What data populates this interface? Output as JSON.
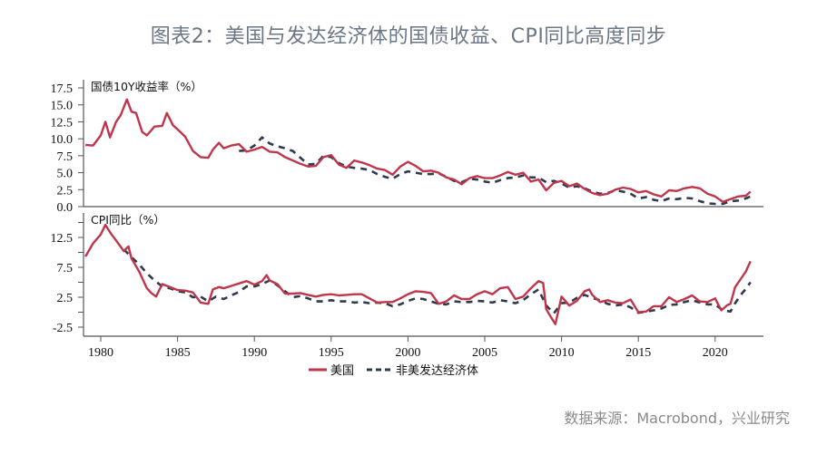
{
  "title": "图表2：美国与发达经济体的国债收益、CPI同比高度同步",
  "source": "数据来源：Macrobond，兴业研究",
  "colors": {
    "us": "#c0354a",
    "non_us": "#2e3a4f",
    "axis": "#555555",
    "title": "#6b7785"
  },
  "legend": {
    "us": "美国",
    "non_us": "非美发达经济体"
  },
  "chart_data": [
    {
      "type": "line",
      "title": "国债10Y收益率（%）",
      "ylabel": "国债10Y收益率（%）",
      "xlabel": "",
      "ylim": [
        0,
        17.5
      ],
      "yticks": [
        0.0,
        2.5,
        5.0,
        7.5,
        10.0,
        12.5,
        15.0,
        17.5
      ],
      "ytick_labels": [
        "0.0",
        "2.5",
        "5.0",
        "7.5",
        "10.0",
        "12.5",
        "15.0",
        "17.5"
      ],
      "xlim": [
        1978.9,
        2023.2
      ],
      "grid": false,
      "legend_position": "bottom",
      "series": [
        {
          "name": "美国",
          "style": "solid",
          "x": [
            1979.0,
            1979.5,
            1980.0,
            1980.3,
            1980.6,
            1981.0,
            1981.3,
            1981.7,
            1982.0,
            1982.3,
            1982.7,
            1983.0,
            1983.5,
            1984.0,
            1984.3,
            1984.7,
            1985.0,
            1985.5,
            1986.0,
            1986.5,
            1987.0,
            1987.3,
            1987.7,
            1988.0,
            1988.5,
            1989.0,
            1989.5,
            1990.0,
            1990.5,
            1991.0,
            1991.5,
            1992.0,
            1992.5,
            1993.0,
            1993.5,
            1994.0,
            1994.5,
            1995.0,
            1995.5,
            1996.0,
            1996.5,
            1997.0,
            1997.5,
            1998.0,
            1998.5,
            1999.0,
            1999.5,
            2000.0,
            2000.5,
            2001.0,
            2001.5,
            2002.0,
            2002.5,
            2003.0,
            2003.5,
            2004.0,
            2004.5,
            2005.0,
            2005.5,
            2006.0,
            2006.5,
            2007.0,
            2007.5,
            2008.0,
            2008.5,
            2009.0,
            2009.5,
            2010.0,
            2010.5,
            2011.0,
            2011.5,
            2012.0,
            2012.5,
            2013.0,
            2013.5,
            2014.0,
            2014.5,
            2015.0,
            2015.5,
            2016.0,
            2016.5,
            2017.0,
            2017.5,
            2018.0,
            2018.5,
            2019.0,
            2019.5,
            2020.0,
            2020.5,
            2021.0,
            2021.5,
            2022.0,
            2022.3
          ],
          "values": [
            9.1,
            9.0,
            10.5,
            12.5,
            10.2,
            12.5,
            13.5,
            15.8,
            14.0,
            13.8,
            11.0,
            10.5,
            11.8,
            11.9,
            13.8,
            12.0,
            11.4,
            10.3,
            8.2,
            7.3,
            7.2,
            8.4,
            9.4,
            8.6,
            9.0,
            9.2,
            8.1,
            8.4,
            8.8,
            8.1,
            8.0,
            7.3,
            6.8,
            6.3,
            5.9,
            6.0,
            7.3,
            7.6,
            6.2,
            5.7,
            6.8,
            6.5,
            6.1,
            5.6,
            5.4,
            4.7,
            5.9,
            6.6,
            6.0,
            5.2,
            5.3,
            5.0,
            4.3,
            4.0,
            3.3,
            4.2,
            4.5,
            4.2,
            4.2,
            4.6,
            5.1,
            4.7,
            5.0,
            3.7,
            4.0,
            2.4,
            3.5,
            3.8,
            3.0,
            3.4,
            2.6,
            2.0,
            1.7,
            1.9,
            2.5,
            2.8,
            2.6,
            2.1,
            2.3,
            1.8,
            1.5,
            2.4,
            2.3,
            2.7,
            2.9,
            2.7,
            1.9,
            1.5,
            0.7,
            1.1,
            1.5,
            1.6,
            2.2
          ]
        },
        {
          "name": "非美发达经济体",
          "style": "dashed",
          "x": [
            1989.0,
            1989.5,
            1990.0,
            1990.5,
            1991.0,
            1991.5,
            1992.0,
            1992.5,
            1993.0,
            1993.5,
            1994.0,
            1994.5,
            1995.0,
            1995.5,
            1996.0,
            1996.5,
            1997.0,
            1997.5,
            1998.0,
            1998.5,
            1999.0,
            1999.5,
            2000.0,
            2000.5,
            2001.0,
            2001.5,
            2002.0,
            2002.5,
            2003.0,
            2003.5,
            2004.0,
            2004.5,
            2005.0,
            2005.5,
            2006.0,
            2006.5,
            2007.0,
            2007.5,
            2008.0,
            2008.5,
            2009.0,
            2009.5,
            2010.0,
            2010.5,
            2011.0,
            2011.5,
            2012.0,
            2012.5,
            2013.0,
            2013.5,
            2014.0,
            2014.5,
            2015.0,
            2015.5,
            2016.0,
            2016.5,
            2017.0,
            2017.5,
            2018.0,
            2018.5,
            2019.0,
            2019.5,
            2020.0,
            2020.5,
            2021.0,
            2021.5,
            2022.0,
            2022.3
          ],
          "values": [
            8.2,
            8.3,
            9.0,
            10.2,
            9.3,
            8.9,
            8.6,
            8.2,
            7.2,
            6.2,
            6.3,
            7.5,
            7.3,
            6.4,
            5.9,
            5.7,
            5.6,
            5.4,
            4.8,
            4.4,
            4.1,
            4.8,
            5.2,
            5.0,
            4.8,
            4.8,
            4.9,
            4.4,
            3.8,
            3.6,
            4.1,
            4.0,
            3.7,
            3.5,
            3.9,
            4.2,
            4.3,
            4.6,
            4.3,
            4.3,
            3.6,
            3.8,
            3.4,
            2.8,
            3.0,
            2.7,
            2.2,
            1.9,
            2.0,
            2.4,
            2.2,
            1.9,
            1.2,
            1.4,
            1.0,
            0.8,
            1.2,
            1.1,
            1.3,
            1.2,
            0.8,
            0.5,
            0.4,
            0.4,
            0.8,
            0.9,
            1.2,
            1.5
          ]
        }
      ]
    },
    {
      "type": "line",
      "title": "CPI同比（%）",
      "ylabel": "CPI同比（%）",
      "xlabel": "",
      "ylim": [
        -4,
        16.5
      ],
      "yticks": [
        -2.5,
        0,
        2.5,
        5,
        7.5,
        10,
        12.5,
        15
      ],
      "ytick_labels": [
        "-2.5",
        "",
        "2.5",
        "",
        "7.5",
        "",
        "12.5",
        ""
      ],
      "xticks": [
        1980,
        1985,
        1990,
        1995,
        2000,
        2005,
        2010,
        2015,
        2020
      ],
      "xtick_labels": [
        "1980",
        "1985",
        "1990",
        "1995",
        "2000",
        "2005",
        "2010",
        "2015",
        "2020"
      ],
      "xlim": [
        1978.9,
        2023.2
      ],
      "grid": false,
      "legend_position": "bottom",
      "series": [
        {
          "name": "美国",
          "style": "solid",
          "x": [
            1979.0,
            1979.5,
            1980.0,
            1980.3,
            1980.7,
            1981.0,
            1981.5,
            1981.8,
            1982.0,
            1982.5,
            1983.0,
            1983.3,
            1983.6,
            1984.0,
            1984.5,
            1985.0,
            1985.5,
            1986.0,
            1986.5,
            1987.0,
            1987.3,
            1987.7,
            1988.0,
            1988.5,
            1989.0,
            1989.5,
            1990.0,
            1990.5,
            1990.8,
            1991.0,
            1991.5,
            1992.0,
            1992.5,
            1993.0,
            1993.5,
            1994.0,
            1994.5,
            1995.0,
            1995.5,
            1996.0,
            1996.5,
            1997.0,
            1997.5,
            1998.0,
            1998.5,
            1999.0,
            1999.5,
            2000.0,
            2000.5,
            2001.0,
            2001.5,
            2002.0,
            2002.5,
            2003.0,
            2003.5,
            2004.0,
            2004.5,
            2005.0,
            2005.5,
            2006.0,
            2006.5,
            2007.0,
            2007.5,
            2008.0,
            2008.5,
            2008.8,
            2009.0,
            2009.3,
            2009.6,
            2010.0,
            2010.5,
            2011.0,
            2011.5,
            2011.8,
            2012.0,
            2012.5,
            2013.0,
            2013.5,
            2014.0,
            2014.5,
            2015.0,
            2015.5,
            2016.0,
            2016.5,
            2017.0,
            2017.5,
            2018.0,
            2018.5,
            2019.0,
            2019.5,
            2020.0,
            2020.4,
            2020.8,
            2021.0,
            2021.3,
            2021.6,
            2022.0,
            2022.3
          ],
          "values": [
            9.3,
            11.5,
            13.0,
            14.6,
            13.0,
            12.0,
            10.2,
            11.0,
            9.0,
            6.8,
            4.0,
            3.2,
            2.6,
            4.7,
            4.2,
            3.7,
            3.6,
            3.3,
            1.6,
            1.4,
            3.8,
            4.2,
            4.0,
            4.4,
            4.8,
            5.2,
            4.6,
            5.2,
            6.2,
            5.3,
            4.7,
            3.1,
            3.1,
            3.2,
            2.9,
            2.6,
            2.9,
            3.0,
            2.8,
            2.9,
            3.0,
            3.0,
            2.3,
            1.6,
            1.7,
            1.7,
            2.3,
            3.0,
            3.5,
            3.4,
            3.2,
            1.4,
            1.8,
            2.8,
            2.2,
            2.2,
            3.0,
            3.5,
            3.0,
            4.0,
            4.2,
            2.2,
            2.6,
            4.0,
            5.2,
            4.9,
            0.5,
            -0.8,
            -2.0,
            2.6,
            1.1,
            1.9,
            3.5,
            3.8,
            2.9,
            1.7,
            2.0,
            1.6,
            1.5,
            2.1,
            0.0,
            0.1,
            1.0,
            1.0,
            2.5,
            1.7,
            2.2,
            2.8,
            1.8,
            1.7,
            2.3,
            0.3,
            1.2,
            1.4,
            4.2,
            5.3,
            6.8,
            8.5
          ]
        },
        {
          "name": "非美发达经济体",
          "style": "dashed",
          "x": [
            1981.5,
            1982.0,
            1982.5,
            1983.0,
            1983.5,
            1984.0,
            1984.5,
            1985.0,
            1985.5,
            1986.0,
            1986.5,
            1987.0,
            1987.5,
            1988.0,
            1988.5,
            1989.0,
            1989.5,
            1990.0,
            1990.5,
            1991.0,
            1991.5,
            1992.0,
            1992.5,
            1993.0,
            1993.5,
            1994.0,
            1994.5,
            1995.0,
            1995.5,
            1996.0,
            1996.5,
            1997.0,
            1997.5,
            1998.0,
            1998.5,
            1999.0,
            1999.5,
            2000.0,
            2000.5,
            2001.0,
            2001.5,
            2002.0,
            2002.5,
            2003.0,
            2003.5,
            2004.0,
            2004.5,
            2005.0,
            2005.5,
            2006.0,
            2006.5,
            2007.0,
            2007.5,
            2008.0,
            2008.5,
            2009.0,
            2009.5,
            2010.0,
            2010.5,
            2011.0,
            2011.5,
            2012.0,
            2012.5,
            2013.0,
            2013.5,
            2014.0,
            2014.5,
            2015.0,
            2015.5,
            2016.0,
            2016.5,
            2017.0,
            2017.5,
            2018.0,
            2018.5,
            2019.0,
            2019.5,
            2020.0,
            2020.5,
            2021.0,
            2021.3,
            2021.7,
            2022.0,
            2022.3
          ],
          "values": [
            10.5,
            9.2,
            8.0,
            6.5,
            5.3,
            4.3,
            4.0,
            3.5,
            3.3,
            2.5,
            2.6,
            1.8,
            2.6,
            2.2,
            2.8,
            3.4,
            4.3,
            4.3,
            4.7,
            5.3,
            4.5,
            3.5,
            2.5,
            2.7,
            2.3,
            1.8,
            1.8,
            2.0,
            1.8,
            1.8,
            1.6,
            1.7,
            1.5,
            1.6,
            1.5,
            1.0,
            1.3,
            1.9,
            2.3,
            2.2,
            1.8,
            1.4,
            1.3,
            1.8,
            1.7,
            1.7,
            1.9,
            1.8,
            1.6,
            2.0,
            1.8,
            1.5,
            2.0,
            3.0,
            3.8,
            1.1,
            -0.2,
            1.5,
            1.6,
            2.4,
            2.9,
            2.4,
            2.0,
            1.4,
            1.1,
            1.3,
            0.8,
            -0.1,
            0.1,
            0.3,
            0.6,
            1.2,
            1.3,
            1.7,
            2.0,
            1.6,
            1.3,
            1.3,
            0.3,
            0.1,
            1.5,
            3.0,
            3.9,
            5.0
          ]
        }
      ]
    }
  ]
}
